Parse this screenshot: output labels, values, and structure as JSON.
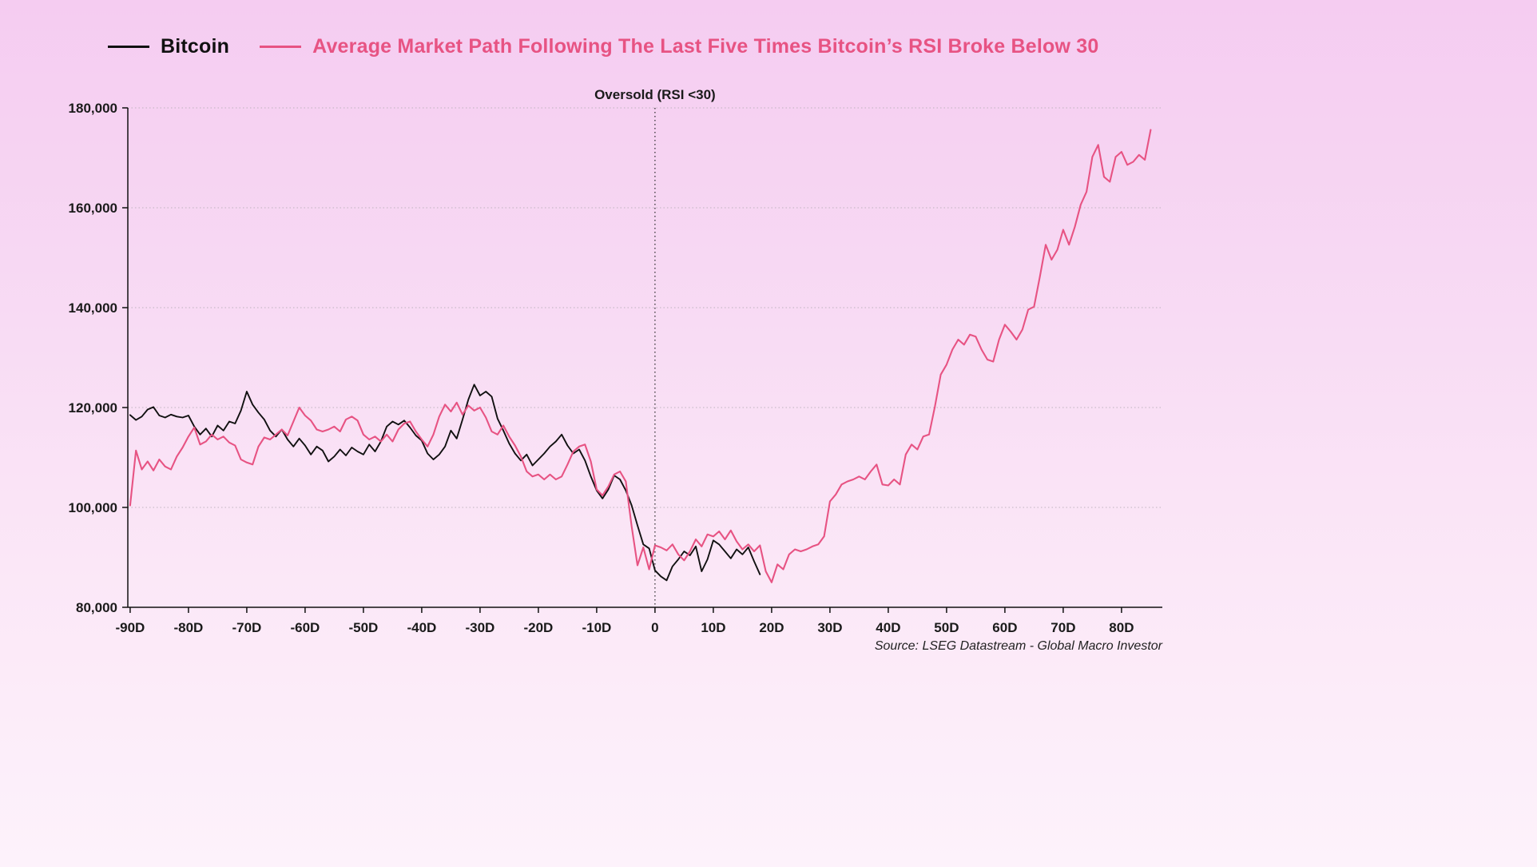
{
  "colors": {
    "bitcoin_line": "#111111",
    "average_line": "#e75383",
    "grid": "#bdb2bd",
    "axis": "#111111",
    "background_top": "#f5ccf1",
    "background_bottom": "#fdf2fb"
  },
  "annotations": {
    "oversold_label": "Oversold (RSI <30)",
    "source": "Source: LSEG Datastream - Global Macro Investor"
  },
  "chart_data": {
    "type": "line",
    "title": "",
    "xlabel": "",
    "ylabel": "",
    "ylim": [
      80000,
      180000
    ],
    "xlim": [
      -90.4,
      87
    ],
    "grid": "horizontal-dotted",
    "legend_position": "top",
    "y_ticks": [
      {
        "value": 80000,
        "label": "80,000"
      },
      {
        "value": 100000,
        "label": "100,000"
      },
      {
        "value": 120000,
        "label": "120,000"
      },
      {
        "value": 140000,
        "label": "140,000"
      },
      {
        "value": 160000,
        "label": "160,000"
      },
      {
        "value": 180000,
        "label": "180,000"
      }
    ],
    "x_ticks": [
      {
        "value": -90,
        "label": "-90D"
      },
      {
        "value": -80,
        "label": "-80D"
      },
      {
        "value": -70,
        "label": "-70D"
      },
      {
        "value": -60,
        "label": "-60D"
      },
      {
        "value": -50,
        "label": "-50D"
      },
      {
        "value": -40,
        "label": "-40D"
      },
      {
        "value": -30,
        "label": "-30D"
      },
      {
        "value": -20,
        "label": "-20D"
      },
      {
        "value": -10,
        "label": "-10D"
      },
      {
        "value": 0,
        "label": "0"
      },
      {
        "value": 10,
        "label": "10D"
      },
      {
        "value": 20,
        "label": "20D"
      },
      {
        "value": 30,
        "label": "30D"
      },
      {
        "value": 40,
        "label": "40D"
      },
      {
        "value": 50,
        "label": "50D"
      },
      {
        "value": 60,
        "label": "60D"
      },
      {
        "value": 70,
        "label": "70D"
      },
      {
        "value": 80,
        "label": "80D"
      }
    ],
    "vline": {
      "x": 0,
      "label": "Oversold (RSI <30)",
      "style": "dotted"
    },
    "series": [
      {
        "name": "Bitcoin",
        "color": "#111111",
        "x0": -90,
        "dx": 1,
        "values": [
          118500,
          117500,
          118200,
          119600,
          120100,
          118400,
          118000,
          118600,
          118200,
          118000,
          118400,
          116200,
          114600,
          115800,
          114200,
          116400,
          115400,
          117200,
          116800,
          119400,
          123200,
          120600,
          119000,
          117600,
          115400,
          114200,
          115600,
          113600,
          112200,
          113800,
          112400,
          110600,
          112200,
          111400,
          109200,
          110200,
          111600,
          110400,
          112000,
          111200,
          110600,
          112600,
          111200,
          113200,
          116200,
          117200,
          116600,
          117400,
          116000,
          114400,
          113400,
          110800,
          109600,
          110600,
          112200,
          115400,
          113800,
          117600,
          121600,
          124600,
          122400,
          123200,
          122200,
          117800,
          115400,
          112800,
          110800,
          109400,
          110600,
          108400,
          109600,
          110800,
          112200,
          113200,
          114600,
          112400,
          110800,
          111600,
          109400,
          106200,
          103400,
          101800,
          103600,
          106400,
          105600,
          103400,
          100400,
          96400,
          92600,
          91800,
          87400,
          86200,
          85400,
          88200,
          89600,
          91200,
          90400,
          92200,
          87200,
          89600,
          93400,
          92600,
          91200,
          89800,
          91600,
          90600,
          92000,
          89200,
          86600
        ]
      },
      {
        "name": "Average Market Path Following The Last Five Times Bitcoin’s RSI Broke Below 30",
        "color": "#e75383",
        "x0": -90,
        "dx": 1,
        "values": [
          100400,
          111400,
          107600,
          109200,
          107400,
          109600,
          108200,
          107600,
          110200,
          112000,
          114200,
          116000,
          112600,
          113200,
          114600,
          113600,
          114200,
          113000,
          112400,
          109600,
          109000,
          108600,
          112200,
          114000,
          113600,
          114600,
          115600,
          114400,
          117200,
          120000,
          118400,
          117400,
          115600,
          115200,
          115600,
          116200,
          115200,
          117600,
          118200,
          117400,
          114600,
          113600,
          114200,
          113200,
          114600,
          113200,
          115600,
          116800,
          117200,
          115200,
          113600,
          112200,
          114600,
          118200,
          120600,
          119200,
          121000,
          118600,
          120400,
          119400,
          120000,
          118000,
          115200,
          114600,
          116400,
          114200,
          112400,
          110200,
          107200,
          106200,
          106600,
          105600,
          106600,
          105600,
          106200,
          108600,
          111200,
          112200,
          112600,
          109200,
          103600,
          102400,
          104200,
          106600,
          107200,
          105200,
          96200,
          88400,
          92000,
          87600,
          92400,
          92000,
          91400,
          92600,
          90600,
          89400,
          91200,
          93600,
          92200,
          94600,
          94200,
          95200,
          93600,
          95400,
          93200,
          91600,
          92600,
          91200,
          92400,
          87200,
          85000,
          88600,
          87600,
          90600,
          91600,
          91200,
          91600,
          92200,
          92600,
          94200,
          101200,
          102600,
          104600,
          105200,
          105600,
          106200,
          105600,
          107200,
          108600,
          104600,
          104400,
          105600,
          104600,
          110600,
          112600,
          111600,
          114200,
          114600,
          120200,
          126600,
          128600,
          131600,
          133600,
          132600,
          134600,
          134200,
          131600,
          129600,
          129200,
          133600,
          136600,
          135200,
          133600,
          135600,
          139600,
          140200,
          146200,
          152600,
          149600,
          151600,
          155600,
          152600,
          156200,
          160600,
          163200,
          170200,
          172600,
          166200,
          165200,
          170200,
          171200,
          168600,
          169200,
          170600,
          169600,
          175600
        ]
      }
    ]
  }
}
